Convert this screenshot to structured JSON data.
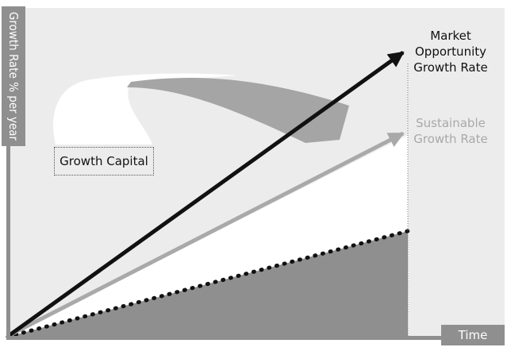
{
  "diagram": {
    "y_axis_label": "Growth Rate % per year",
    "x_axis_label": "Time",
    "lines": [
      {
        "label_lines": [
          "Market",
          "Opportunity",
          "Growth Rate"
        ],
        "color": "#111111"
      },
      {
        "label_lines": [
          "Sustainable",
          "Growth Rate"
        ],
        "color": "#a9a9a9"
      }
    ],
    "callout": "Growth Capital",
    "colors": {
      "background": "#ececec",
      "white_region": "#ffffff",
      "dark_region": "#8f8f8f",
      "arrow_black": "#111111",
      "arrow_gray": "#a9a9a9",
      "axis": "#8f8f8f"
    }
  }
}
